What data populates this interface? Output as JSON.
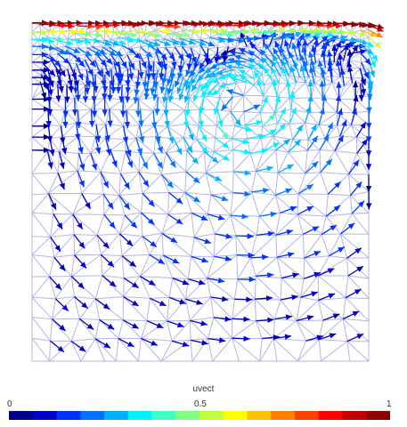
{
  "chart_data": {
    "type": "vector-field",
    "colorbar": {
      "label": "uvect",
      "ticks": [
        "0",
        "0.5",
        "1"
      ],
      "range": [
        0,
        1
      ],
      "colors": [
        "#00008f",
        "#0000c8",
        "#0030ff",
        "#0070ff",
        "#00b0ff",
        "#00f0ff",
        "#40ffbf",
        "#80ff80",
        "#c0ff40",
        "#ffff00",
        "#ffc000",
        "#ff8000",
        "#ff4000",
        "#ff0000",
        "#c00000",
        "#8f0000"
      ]
    },
    "domain": {
      "x": [
        0,
        1
      ],
      "y": [
        0,
        1
      ]
    },
    "vortex_center": [
      0.62,
      0.76
    ],
    "lid_velocity": 1.0,
    "mesh": "triangular",
    "mesh_color": "#b4b4e6"
  }
}
